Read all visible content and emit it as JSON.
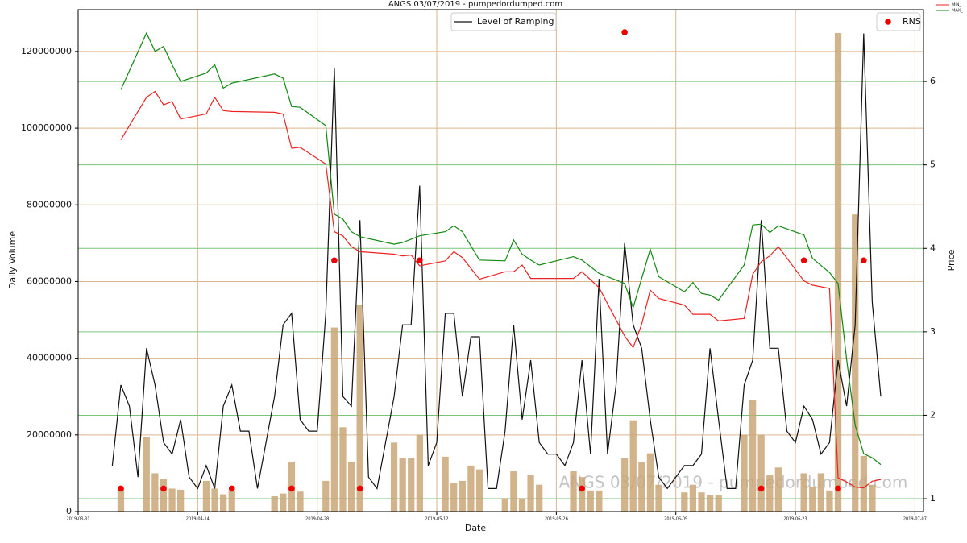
{
  "chart_data": {
    "type": "combo",
    "title": "ANGS 03/07/2019 - pumpedordumped.com",
    "watermark": "ANGS 03/07/2019 - pumpedordumped.com",
    "xlabel": "Date",
    "ylabel": "Daily Volume",
    "y2label": "Price",
    "x": [
      "2019-04-04",
      "2019-04-05",
      "2019-04-06",
      "2019-04-07",
      "2019-04-08",
      "2019-04-09",
      "2019-04-10",
      "2019-04-11",
      "2019-04-12",
      "2019-04-13",
      "2019-04-14",
      "2019-04-15",
      "2019-04-16",
      "2019-04-17",
      "2019-04-18",
      "2019-04-19",
      "2019-04-20",
      "2019-04-21",
      "2019-04-22",
      "2019-04-23",
      "2019-04-24",
      "2019-04-25",
      "2019-04-26",
      "2019-04-27",
      "2019-04-28",
      "2019-04-29",
      "2019-04-30",
      "2019-05-01",
      "2019-05-02",
      "2019-05-03",
      "2019-05-04",
      "2019-05-05",
      "2019-05-06",
      "2019-05-07",
      "2019-05-08",
      "2019-05-09",
      "2019-05-10",
      "2019-05-11",
      "2019-05-12",
      "2019-05-13",
      "2019-05-14",
      "2019-05-15",
      "2019-05-16",
      "2019-05-17",
      "2019-05-18",
      "2019-05-19",
      "2019-05-20",
      "2019-05-21",
      "2019-05-22",
      "2019-05-23",
      "2019-05-24",
      "2019-05-25",
      "2019-05-26",
      "2019-05-27",
      "2019-05-28",
      "2019-05-29",
      "2019-05-30",
      "2019-05-31",
      "2019-06-01",
      "2019-06-02",
      "2019-06-03",
      "2019-06-04",
      "2019-06-05",
      "2019-06-06",
      "2019-06-07",
      "2019-06-08",
      "2019-06-09",
      "2019-06-10",
      "2019-06-11",
      "2019-06-12",
      "2019-06-13",
      "2019-06-14",
      "2019-06-15",
      "2019-06-16",
      "2019-06-17",
      "2019-06-18",
      "2019-06-19",
      "2019-06-20",
      "2019-06-21",
      "2019-06-22",
      "2019-06-23",
      "2019-06-24",
      "2019-06-25",
      "2019-06-26",
      "2019-06-27",
      "2019-06-28",
      "2019-06-29",
      "2019-06-30",
      "2019-07-01",
      "2019-07-02",
      "2019-07-03"
    ],
    "xlim": [
      "2019-03-31",
      "2019-07-08"
    ],
    "xticks": [
      "2019-03-31",
      "2019-04-14",
      "2019-04-28",
      "2019-05-12",
      "2019-05-26",
      "2019-06-09",
      "2019-06-23",
      "2019-07-07"
    ],
    "ylim": [
      0,
      130900000
    ],
    "yticks": [
      0,
      20000000,
      40000000,
      60000000,
      80000000,
      100000000,
      120000000
    ],
    "y2lim": [
      0.846,
      6.86
    ],
    "y2ticks": [
      1,
      2,
      3,
      4,
      5,
      6
    ],
    "grid": true,
    "grid_color": "#dcb48c",
    "y2grid_color": "#7cc47c",
    "series": [
      {
        "type": "bar",
        "color": "#c9a678",
        "values": [
          null,
          6000000,
          null,
          null,
          19500000,
          10000000,
          8500000,
          6000000,
          5700000,
          null,
          null,
          8000000,
          6000000,
          4500000,
          5500000,
          null,
          null,
          null,
          null,
          4000000,
          4700000,
          13000000,
          5200000,
          null,
          null,
          8000000,
          48000000,
          22000000,
          13000000,
          54000000,
          null,
          null,
          null,
          18000000,
          14000000,
          14000000,
          20000000,
          null,
          null,
          14300000,
          7500000,
          8000000,
          12000000,
          11000000,
          null,
          null,
          3500000,
          10500000,
          3500000,
          9500000,
          7000000,
          null,
          null,
          null,
          10500000,
          9000000,
          5500000,
          5500000,
          null,
          null,
          14000000,
          23800000,
          12800000,
          15200000,
          7000000,
          null,
          null,
          5000000,
          7000000,
          5000000,
          4200000,
          4200000,
          null,
          null,
          20000000,
          29000000,
          20000000,
          9500000,
          11500000,
          null,
          null,
          10000000,
          6500000,
          10000000,
          5500000,
          124800000,
          null,
          77500000,
          14500000,
          7000000,
          null
        ]
      },
      {
        "type": "line",
        "name": "Level of Ramping",
        "color": "#111111",
        "legend": "upper center",
        "values": [
          12000000,
          33000000,
          27500000,
          9000000,
          42600000,
          33000000,
          18000000,
          15000000,
          24000000,
          9000000,
          6000000,
          12000000,
          6000000,
          27500000,
          33000000,
          21000000,
          21000000,
          6000000,
          18000000,
          30000000,
          48700000,
          51700000,
          24000000,
          21000000,
          21000000,
          51700000,
          115700000,
          30000000,
          27500000,
          76000000,
          9000000,
          6000000,
          18000000,
          30000000,
          48700000,
          48700000,
          85000000,
          12000000,
          18000000,
          51700000,
          51700000,
          30000000,
          45600000,
          45600000,
          6000000,
          6000000,
          21000000,
          48700000,
          24000000,
          39500000,
          18000000,
          15000000,
          15000000,
          12000000,
          18000000,
          39500000,
          15000000,
          60700000,
          15000000,
          33000000,
          70000000,
          48700000,
          42600000,
          24000000,
          9000000,
          6000000,
          9000000,
          12000000,
          12000000,
          15000000,
          42600000,
          24000000,
          6000000,
          6000000,
          33000000,
          39500000,
          76000000,
          42600000,
          42600000,
          21000000,
          18000000,
          27500000,
          24000000,
          15000000,
          18000000,
          39500000,
          27500000,
          48700000,
          124700000,
          54600000,
          30000000
        ]
      },
      {
        "type": "scatter",
        "name": "RNS",
        "color": "#ee0000",
        "legend": "upper right",
        "x": [
          "2019-04-05",
          "2019-04-10",
          "2019-04-18",
          "2019-04-25",
          "2019-04-30",
          "2019-05-03",
          "2019-05-10",
          "2019-05-29",
          "2019-06-03",
          "2019-06-19",
          "2019-06-24",
          "2019-06-28",
          "2019-07-01"
        ],
        "values": [
          6000000,
          6000000,
          6000000,
          6000000,
          65500000,
          6000000,
          65500000,
          6000000,
          125000000,
          6000000,
          65500000,
          6000000,
          65500000
        ]
      },
      {
        "type": "line",
        "name": "MIN_",
        "color": "#ee2222",
        "axis": "y2",
        "legend": "outside",
        "x": [
          "2019-04-05",
          "2019-04-08",
          "2019-04-09",
          "2019-04-10",
          "2019-04-11",
          "2019-04-12",
          "2019-04-15",
          "2019-04-16",
          "2019-04-17",
          "2019-04-18",
          "2019-04-23",
          "2019-04-24",
          "2019-04-25",
          "2019-04-26",
          "2019-04-29",
          "2019-04-30",
          "2019-05-01",
          "2019-05-02",
          "2019-05-03",
          "2019-05-07",
          "2019-05-08",
          "2019-05-09",
          "2019-05-10",
          "2019-05-13",
          "2019-05-14",
          "2019-05-15",
          "2019-05-17",
          "2019-05-20",
          "2019-05-21",
          "2019-05-22",
          "2019-05-23",
          "2019-05-24",
          "2019-05-28",
          "2019-05-29",
          "2019-05-31",
          "2019-06-03",
          "2019-06-04",
          "2019-06-05",
          "2019-06-06",
          "2019-06-07",
          "2019-06-10",
          "2019-06-11",
          "2019-06-12",
          "2019-06-13",
          "2019-06-14",
          "2019-06-17",
          "2019-06-18",
          "2019-06-19",
          "2019-06-20",
          "2019-06-21",
          "2019-06-24",
          "2019-06-25",
          "2019-06-27",
          "2019-06-28",
          "2019-06-29",
          "2019-06-30",
          "2019-07-01",
          "2019-07-02",
          "2019-07-03"
        ],
        "values": [
          5.3,
          5.81,
          5.88,
          5.72,
          5.76,
          5.55,
          5.61,
          5.81,
          5.65,
          5.64,
          5.63,
          5.61,
          5.2,
          5.21,
          5.01,
          4.2,
          4.15,
          4.02,
          3.96,
          3.93,
          3.91,
          3.92,
          3.79,
          3.85,
          3.96,
          3.89,
          3.63,
          3.72,
          3.72,
          3.8,
          3.64,
          3.64,
          3.64,
          3.72,
          3.53,
          2.95,
          2.81,
          3.09,
          3.5,
          3.4,
          3.32,
          3.21,
          3.21,
          3.21,
          3.13,
          3.16,
          3.69,
          3.84,
          3.91,
          4.02,
          3.61,
          3.56,
          3.52,
          1.25,
          1.2,
          1.14,
          1.13,
          1.21,
          1.23
        ]
      },
      {
        "type": "line",
        "name": "MAX_",
        "color": "#118811",
        "axis": "y2",
        "legend": "outside",
        "x": [
          "2019-04-05",
          "2019-04-08",
          "2019-04-09",
          "2019-04-10",
          "2019-04-11",
          "2019-04-12",
          "2019-04-15",
          "2019-04-16",
          "2019-04-17",
          "2019-04-18",
          "2019-04-23",
          "2019-04-24",
          "2019-04-25",
          "2019-04-26",
          "2019-04-29",
          "2019-04-30",
          "2019-05-01",
          "2019-05-02",
          "2019-05-03",
          "2019-05-07",
          "2019-05-08",
          "2019-05-09",
          "2019-05-10",
          "2019-05-13",
          "2019-05-14",
          "2019-05-15",
          "2019-05-17",
          "2019-05-20",
          "2019-05-21",
          "2019-05-22",
          "2019-05-23",
          "2019-05-24",
          "2019-05-28",
          "2019-05-29",
          "2019-05-31",
          "2019-06-03",
          "2019-06-04",
          "2019-06-05",
          "2019-06-06",
          "2019-06-07",
          "2019-06-10",
          "2019-06-11",
          "2019-06-12",
          "2019-06-13",
          "2019-06-14",
          "2019-06-17",
          "2019-06-18",
          "2019-06-19",
          "2019-06-20",
          "2019-06-21",
          "2019-06-24",
          "2019-06-25",
          "2019-06-27",
          "2019-06-28",
          "2019-06-29",
          "2019-06-30",
          "2019-07-01",
          "2019-07-02",
          "2019-07-03"
        ],
        "values": [
          5.9,
          6.58,
          6.36,
          6.42,
          6.2,
          6.0,
          6.1,
          6.2,
          5.92,
          5.98,
          6.09,
          6.04,
          5.7,
          5.69,
          5.47,
          4.41,
          4.35,
          4.2,
          4.14,
          4.05,
          4.07,
          4.11,
          4.15,
          4.2,
          4.27,
          4.2,
          3.86,
          3.85,
          4.1,
          3.93,
          3.86,
          3.8,
          3.9,
          3.86,
          3.7,
          3.58,
          3.29,
          3.64,
          3.99,
          3.66,
          3.48,
          3.59,
          3.46,
          3.44,
          3.38,
          3.8,
          4.28,
          4.29,
          4.19,
          4.27,
          4.16,
          3.88,
          3.71,
          3.58,
          2.67,
          1.88,
          1.54,
          1.49,
          1.41
        ]
      }
    ]
  }
}
